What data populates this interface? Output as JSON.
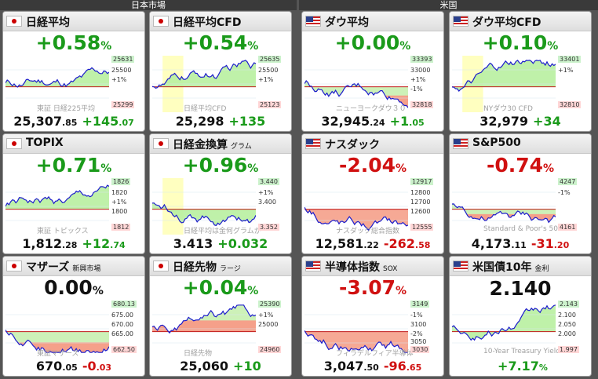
{
  "regions": {
    "japan": "日本市場",
    "us": "米国"
  },
  "tiles": [
    {
      "name": "日経平均",
      "sub": "",
      "flag": "jp",
      "pct": "+0.58",
      "unit": "%",
      "dir": "up",
      "price_int": "25,307",
      "price_dec": ".85",
      "chg_int": "+145",
      "chg_dec": ".07",
      "hi": "25631",
      "lo": "25299",
      "mid1": "25500",
      "mid2": "+1%",
      "watermark": "東証 日経225平均",
      "fill": "green",
      "shade": false
    },
    {
      "name": "日経平均CFD",
      "sub": "",
      "flag": "jp",
      "pct": "+0.54",
      "unit": "%",
      "dir": "up",
      "price_int": "25,298",
      "price_dec": "",
      "chg_int": "+135",
      "chg_dec": "",
      "hi": "25635",
      "lo": "25123",
      "mid1": "25500",
      "mid2": "+1%",
      "watermark": "日経平均CFD",
      "fill": "green",
      "shade": true
    },
    {
      "name": "ダウ平均",
      "sub": "",
      "flag": "us",
      "pct": "+0.00",
      "unit": "%",
      "dir": "up",
      "price_int": "32,945",
      "price_dec": ".24",
      "chg_int": "+1",
      "chg_dec": ".05",
      "hi": "33393",
      "lo": "32818",
      "mid1": "33000",
      "mid2": "+1%",
      "mid3": "-1%",
      "watermark": "ニューヨークダウ３０",
      "fill": "mixed",
      "shade": false
    },
    {
      "name": "ダウ平均CFD",
      "sub": "",
      "flag": "us",
      "pct": "+0.10",
      "unit": "%",
      "dir": "up",
      "price_int": "32,979",
      "price_dec": "",
      "chg_int": "+34",
      "chg_dec": "",
      "hi": "33401",
      "lo": "32810",
      "mid1": "+1%",
      "mid2": "",
      "watermark": "NYダウ30 CFD",
      "fill": "green",
      "shade": true
    },
    {
      "name": "TOPIX",
      "sub": "",
      "flag": "jp",
      "pct": "+0.71",
      "unit": "%",
      "dir": "up",
      "price_int": "1,812",
      "price_dec": ".28",
      "chg_int": "+12",
      "chg_dec": ".74",
      "hi": "1826",
      "lo": "1812",
      "mid1": "1820",
      "mid2": "+1%",
      "mid3": "1800",
      "watermark": "東証 トピックス",
      "fill": "green",
      "shade": false
    },
    {
      "name": "日経金換算",
      "sub": "グラム",
      "flag": "jp",
      "pct": "+0.96",
      "unit": "%",
      "dir": "up",
      "price_int": "3.413",
      "price_dec": "",
      "chg_int": "+0.032",
      "chg_dec": "",
      "hi": "3.440",
      "lo": "3.352",
      "mid1": "+1%",
      "mid2": "3.400",
      "watermark": "日経平均は金何グラムか",
      "fill": "green",
      "shade": true
    },
    {
      "name": "ナスダック",
      "sub": "",
      "flag": "us",
      "pct": "-2.04",
      "unit": "%",
      "dir": "down",
      "price_int": "12,581",
      "price_dec": ".22",
      "chg_int": "-262",
      "chg_dec": ".58",
      "hi": "12917",
      "lo": "12555",
      "mid1": "12800",
      "mid2": "12700",
      "mid3": "12600",
      "watermark": "ナスダック総合指数",
      "fill": "red",
      "shade": false
    },
    {
      "name": "S&P500",
      "sub": "",
      "flag": "us",
      "pct": "-0.74",
      "unit": "%",
      "dir": "down",
      "price_int": "4,173",
      "price_dec": ".11",
      "chg_int": "-31",
      "chg_dec": ".20",
      "hi": "4247",
      "lo": "4161",
      "mid1": "-1%",
      "mid2": "",
      "watermark": "Standard & Poor's 500",
      "fill": "mixed",
      "shade": false
    },
    {
      "name": "マザーズ",
      "sub": "新興市場",
      "flag": "jp",
      "pct": "0.00",
      "unit": "%",
      "dir": "flat",
      "price_int": "670",
      "price_dec": ".05",
      "chg_int": "-0",
      "chg_dec": ".03",
      "hi": "680.13",
      "lo": "662.50",
      "mid1": "675.00",
      "mid2": "670.00",
      "mid3": "665.00",
      "watermark": "東証マザーズ",
      "fill": "mixed",
      "shade": false
    },
    {
      "name": "日経先物",
      "sub": "ラージ",
      "flag": "jp",
      "pct": "+0.04",
      "unit": "%",
      "dir": "up",
      "price_int": "25,060",
      "price_dec": "",
      "chg_int": "+10",
      "chg_dec": "",
      "hi": "25390",
      "lo": "24960",
      "mid1": "+1%",
      "mid2": "25000",
      "watermark": "日経先物",
      "fill": "mixed",
      "shade": false
    },
    {
      "name": "半導体指数",
      "sub": "SOX",
      "flag": "us",
      "pct": "-3.07",
      "unit": "%",
      "dir": "down",
      "price_int": "3,047",
      "price_dec": ".50",
      "chg_int": "-96",
      "chg_dec": ".65",
      "hi": "3149",
      "lo": "3030",
      "mid1": "-1%",
      "mid2": "3100",
      "mid3": "-2%",
      "mid4": "3050",
      "watermark": "フィラデルフィア半導体",
      "fill": "red",
      "shade": false
    },
    {
      "name": "米国債10年",
      "sub": "金利",
      "flag": "us",
      "pct": "",
      "unit": "",
      "dir": "up",
      "value": "2.140",
      "chg_int": "+7.17",
      "chg_dec": "%",
      "hi": "2.143",
      "lo": "1.997",
      "mid1": "2.100",
      "mid2": "2.050",
      "mid3": "2.000",
      "watermark": "10-Year Treasury Yield",
      "fill": "green",
      "shade": false
    }
  ]
}
